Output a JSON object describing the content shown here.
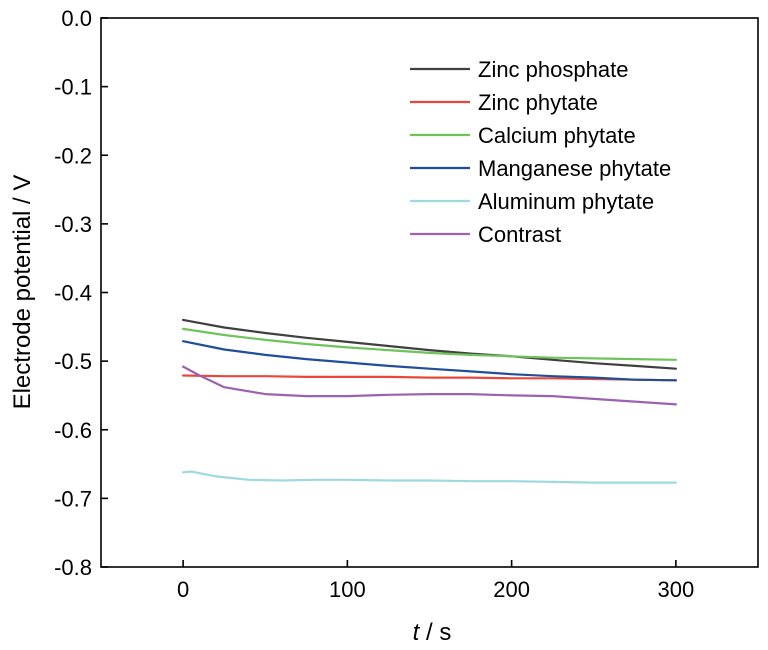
{
  "chart_data": {
    "type": "line",
    "title": "",
    "xlabel": {
      "italic_part": "t",
      "rest": " / s"
    },
    "ylabel": "Electrode potential / V",
    "xlim": [
      -50,
      350
    ],
    "ylim": [
      -0.8,
      0.0
    ],
    "x_ticks": [
      0,
      100,
      200,
      300
    ],
    "x_tick_labels": [
      "0",
      "100",
      "200",
      "300"
    ],
    "y_ticks": [
      0.0,
      -0.1,
      -0.2,
      -0.3,
      -0.4,
      -0.5,
      -0.6,
      -0.7,
      -0.8
    ],
    "y_tick_labels": [
      "0.0",
      "-0.1",
      "-0.2",
      "-0.3",
      "-0.4",
      "-0.5",
      "-0.6",
      "-0.7",
      "-0.8"
    ],
    "grid": false,
    "legend_position": "top-right",
    "series": [
      {
        "name": "Zinc phosphate",
        "color": "#404040",
        "x": [
          0,
          25,
          50,
          75,
          100,
          125,
          150,
          175,
          200,
          225,
          250,
          275,
          300
        ],
        "y": [
          -0.44,
          -0.451,
          -0.459,
          -0.466,
          -0.472,
          -0.478,
          -0.484,
          -0.489,
          -0.493,
          -0.498,
          -0.503,
          -0.507,
          -0.511
        ]
      },
      {
        "name": "Zinc phytate",
        "color": "#e8483b",
        "x": [
          0,
          25,
          50,
          75,
          100,
          125,
          150,
          175,
          200,
          225,
          250,
          275,
          300
        ],
        "y": [
          -0.521,
          -0.522,
          -0.522,
          -0.523,
          -0.523,
          -0.523,
          -0.524,
          -0.524,
          -0.525,
          -0.525,
          -0.526,
          -0.527,
          -0.528
        ]
      },
      {
        "name": "Calcium phytate",
        "color": "#6ec35a",
        "x": [
          0,
          25,
          50,
          75,
          100,
          125,
          150,
          175,
          200,
          225,
          250,
          275,
          300
        ],
        "y": [
          -0.453,
          -0.462,
          -0.469,
          -0.475,
          -0.48,
          -0.484,
          -0.488,
          -0.491,
          -0.493,
          -0.495,
          -0.496,
          -0.497,
          -0.498
        ]
      },
      {
        "name": "Manganese phytate",
        "color": "#1f4e9a",
        "x": [
          0,
          25,
          50,
          75,
          100,
          125,
          150,
          175,
          200,
          225,
          250,
          275,
          300
        ],
        "y": [
          -0.471,
          -0.483,
          -0.491,
          -0.497,
          -0.502,
          -0.507,
          -0.511,
          -0.515,
          -0.519,
          -0.522,
          -0.524,
          -0.527,
          -0.528
        ]
      },
      {
        "name": "Aluminum phytate",
        "color": "#9ed9dd",
        "x": [
          0,
          5,
          20,
          40,
          60,
          80,
          100,
          125,
          150,
          175,
          200,
          225,
          250,
          275,
          300
        ],
        "y": [
          -0.662,
          -0.661,
          -0.668,
          -0.673,
          -0.674,
          -0.673,
          -0.673,
          -0.674,
          -0.674,
          -0.675,
          -0.675,
          -0.676,
          -0.677,
          -0.677,
          -0.677
        ]
      },
      {
        "name": "Contrast",
        "color": "#9b62b0",
        "x": [
          0,
          10,
          25,
          50,
          75,
          100,
          125,
          150,
          175,
          200,
          225,
          250,
          275,
          300
        ],
        "y": [
          -0.508,
          -0.521,
          -0.538,
          -0.548,
          -0.551,
          -0.551,
          -0.549,
          -0.548,
          -0.548,
          -0.55,
          -0.551,
          -0.555,
          -0.559,
          -0.563
        ]
      }
    ]
  }
}
